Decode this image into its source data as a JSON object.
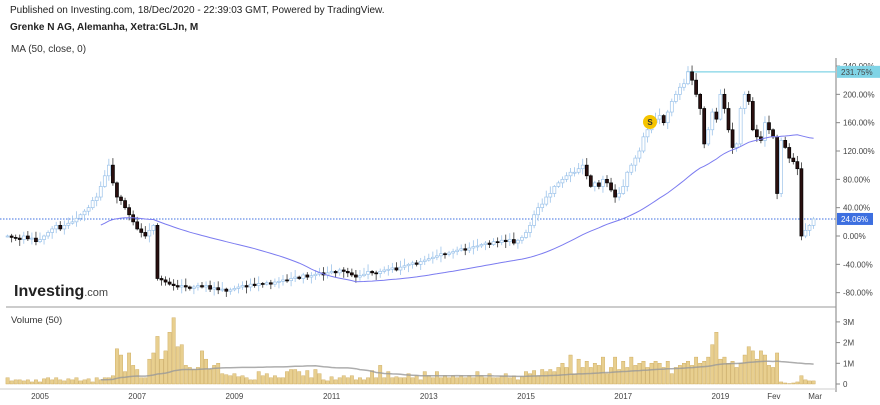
{
  "header": {
    "published": "Published on Investing.com, 18/Dec/2020 - 22:39:03 GMT, Powered by TradingView.",
    "title": "Grenke N AG, Alemanha, Xetra:GLJn, M",
    "indicator": "MA (50, close, 0)",
    "volume_label": "Volume (50)"
  },
  "logo": {
    "brand": "Investing",
    "suffix": ".com"
  },
  "colors": {
    "up": "#9cc3ea",
    "down": "#2a0f0f",
    "ma": "#7b7bf0",
    "volume": "#e8cf8f",
    "volume_border": "#c9a555",
    "volume_ma": "#999999",
    "last_price": "#3d6fe0",
    "high_line": "#80d4e6",
    "dividend": "#f5c400"
  },
  "chart_data": [
    {
      "type": "candlestick",
      "title": "Grenke N AG, Alemanha, Xetra:GLJn, M",
      "start": "2004-05",
      "interval": "month",
      "yunit": "%",
      "ylim": [
        -95,
        250
      ],
      "y_ticks": [
        "240.00%",
        "200.00%",
        "160.00%",
        "120.00%",
        "80.00%",
        "40.00%",
        "0.00%",
        "-40.00%",
        "-80.00%"
      ],
      "y_tick_values": [
        240,
        200,
        160,
        120,
        80,
        40,
        0,
        -40,
        -80
      ],
      "x_ticks": [
        "2005",
        "2007",
        "2009",
        "2011",
        "2013",
        "2015",
        "2017",
        "2019",
        "Fev",
        "Mar"
      ],
      "x_tick_dates": [
        2005,
        2007,
        2009,
        2011,
        2013,
        2015,
        2017,
        2019,
        2020.1,
        2020.95
      ],
      "ma_period": 50,
      "last_value": 24.06,
      "last_label": "24.06%",
      "high_value": 231.75,
      "high_label": "231.75%",
      "dividend_marker": {
        "label": "S",
        "date": 2017.0,
        "value": 160
      },
      "closes": [
        0,
        -2,
        -3,
        -5,
        0,
        -4,
        -3,
        -8,
        -5,
        0,
        5,
        10,
        15,
        10,
        15,
        18,
        20,
        25,
        30,
        35,
        40,
        50,
        55,
        70,
        85,
        100,
        75,
        55,
        50,
        40,
        30,
        20,
        10,
        5,
        0,
        8,
        15,
        -60,
        -62,
        -65,
        -68,
        -70,
        -72,
        -70,
        -72,
        -74,
        -72,
        -70,
        -72,
        -70,
        -75,
        -73,
        -76,
        -75,
        -78,
        -76,
        -74,
        -72,
        -70,
        -72,
        -68,
        -70,
        -67,
        -68,
        -66,
        -68,
        -65,
        -64,
        -62,
        -63,
        -60,
        -58,
        -60,
        -55,
        -58,
        -56,
        -54,
        -52,
        -55,
        -52,
        -50,
        -52,
        -48,
        -50,
        -52,
        -55,
        -58,
        -56,
        -54,
        -50,
        -52,
        -53,
        -50,
        -48,
        -47,
        -45,
        -48,
        -44,
        -42,
        -40,
        -38,
        -40,
        -36,
        -34,
        -32,
        -30,
        -28,
        -25,
        -26,
        -24,
        -22,
        -20,
        -18,
        -20,
        -17,
        -15,
        -14,
        -12,
        -10,
        -12,
        -8,
        -9,
        -6,
        -8,
        -5,
        -10,
        -6,
        -2,
        5,
        15,
        30,
        40,
        45,
        55,
        60,
        70,
        75,
        80,
        85,
        90,
        90,
        95,
        100,
        85,
        70,
        75,
        70,
        80,
        75,
        65,
        55,
        60,
        70,
        90,
        100,
        110,
        120,
        140,
        150,
        160,
        165,
        170,
        160,
        175,
        190,
        200,
        210,
        215,
        231.75,
        220,
        200,
        180,
        130,
        150,
        175,
        165,
        200,
        180,
        150,
        125,
        130,
        180,
        200,
        190,
        150,
        140,
        135,
        160,
        150,
        140,
        60,
        135,
        125,
        110,
        105,
        95,
        0,
        8,
        15,
        24.06
      ]
    },
    {
      "type": "bar",
      "title": "Volume (50)",
      "unit": "M",
      "ylim": [
        0,
        3.5
      ],
      "y_ticks": [
        "3M",
        "2M",
        "1M",
        "0"
      ],
      "y_tick_values": [
        3,
        2,
        1,
        0
      ],
      "ma_period": 50,
      "values": [
        0.3,
        0.15,
        0.2,
        0.2,
        0.15,
        0.2,
        0.1,
        0.2,
        0.1,
        0.25,
        0.3,
        0.2,
        0.3,
        0.2,
        0.15,
        0.25,
        0.2,
        0.3,
        0.15,
        0.2,
        0.25,
        0.1,
        0.3,
        0.2,
        0.3,
        0.3,
        0.4,
        1.7,
        1.4,
        0.6,
        1.5,
        0.9,
        0.7,
        0.3,
        0.3,
        1.2,
        1.5,
        2.3,
        1.2,
        1.6,
        2.5,
        3.2,
        1.8,
        1.9,
        0.9,
        0.8,
        0.7,
        0.8,
        1.6,
        1.2,
        0.7,
        0.9,
        1.0,
        0.5,
        0.45,
        0.4,
        0.5,
        0.35,
        0.4,
        0.3,
        0.2,
        0.2,
        0.6,
        0.4,
        0.5,
        0.3,
        0.4,
        0.3,
        0.3,
        0.6,
        0.7,
        0.7,
        0.6,
        0.4,
        0.65,
        0.3,
        0.7,
        0.5,
        0.2,
        0.15,
        0.35,
        0.2,
        0.3,
        0.4,
        0.3,
        0.4,
        0.2,
        0.3,
        0.2,
        0.3,
        0.65,
        0.3,
        0.9,
        0.3,
        0.6,
        0.3,
        0.35,
        0.3,
        0.3,
        0.5,
        0.3,
        0.4,
        0.2,
        0.6,
        0.4,
        0.3,
        0.6,
        0.3,
        0.4,
        0.3,
        0.4,
        0.3,
        0.4,
        0.3,
        0.4,
        0.3,
        0.6,
        0.4,
        0.3,
        0.5,
        0.3,
        0.3,
        0.4,
        0.5,
        0.3,
        0.4,
        0.2,
        0.35,
        0.6,
        0.5,
        0.65,
        0.4,
        0.7,
        0.6,
        0.7,
        0.6,
        0.8,
        1.0,
        0.8,
        1.4,
        0.5,
        1.2,
        0.8,
        1.1,
        0.8,
        1.0,
        0.9,
        1.3,
        0.5,
        0.8,
        1.3,
        0.7,
        1.1,
        0.8,
        1.3,
        0.9,
        1.0,
        1.1,
        0.8,
        1.0,
        1.1,
        1.0,
        0.8,
        1.1,
        0.5,
        0.8,
        0.9,
        1.0,
        1.1,
        0.9,
        1.3,
        1.0,
        1.1,
        1.3,
        1.9,
        2.5,
        1.2,
        1.3,
        1.0,
        1.1,
        0.8,
        1.0,
        1.4,
        1.8,
        1.6,
        1.2,
        1.6,
        1.4,
        0.9,
        0.8,
        1.5,
        0.1,
        0.05,
        0.02,
        0.05,
        0.1,
        0.4,
        0.2,
        0.15,
        0.15
      ]
    }
  ]
}
